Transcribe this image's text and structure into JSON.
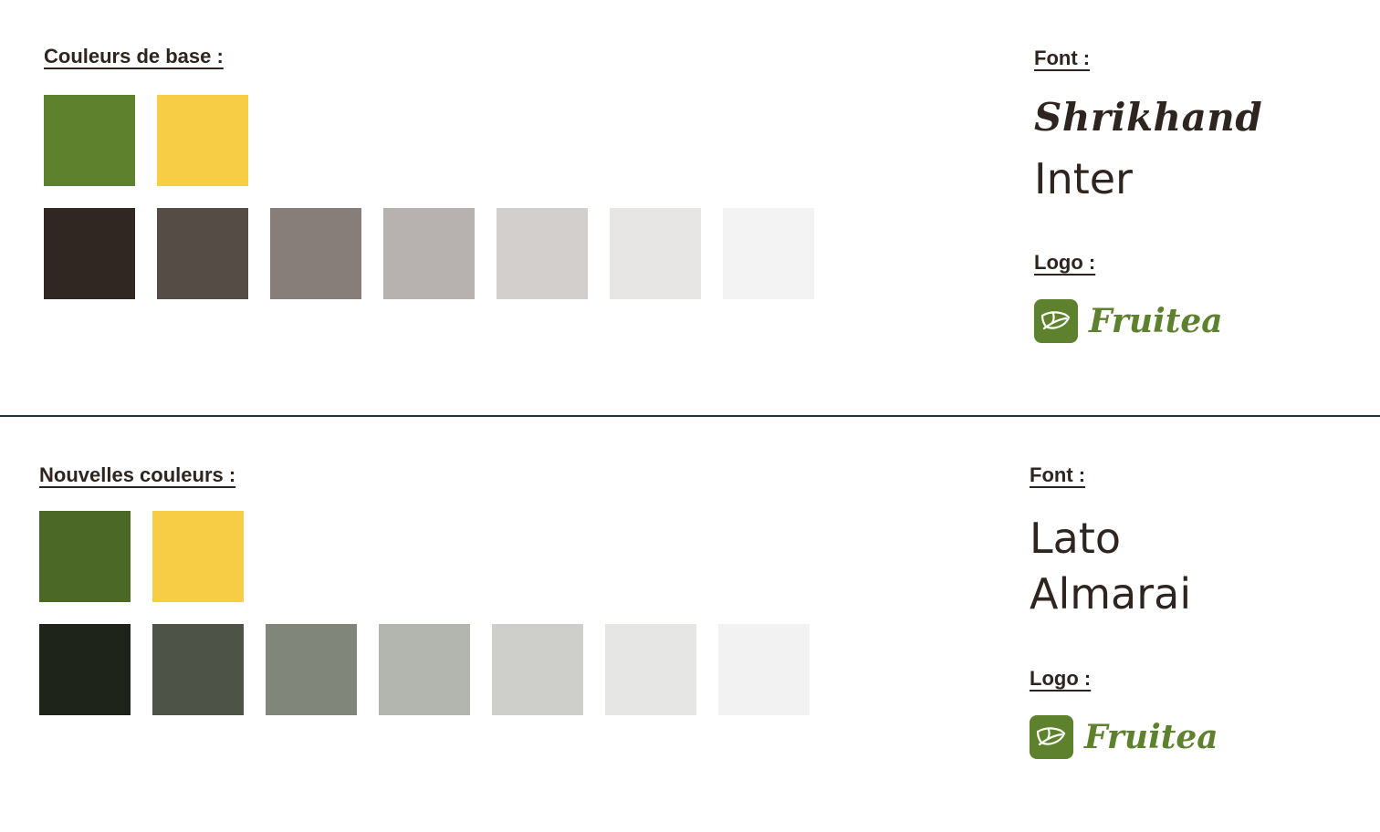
{
  "colors": {
    "text": "#2f2520",
    "divider": "#1f3038"
  },
  "base": {
    "colors_heading": "Couleurs de base :",
    "primary_swatches": [
      {
        "color": "#5e812e",
        "role": "green"
      },
      {
        "color": "#f6cd45",
        "role": "yellow"
      }
    ],
    "neutral_swatches": [
      {
        "color": "#312722"
      },
      {
        "color": "#564c46"
      },
      {
        "color": "#877e79"
      },
      {
        "color": "#b7b2af"
      },
      {
        "color": "#d3cfcd"
      },
      {
        "color": "#e8e6e5"
      },
      {
        "color": "#f4f3f3"
      }
    ],
    "font_heading": "Font :",
    "fonts": [
      "Shrikhand",
      "Inter"
    ],
    "logo_heading": "Logo :",
    "logo": {
      "icon": "leaf-icon",
      "text": "Fruitea",
      "badge_color": "#5e812e",
      "text_color": "#5e812e"
    }
  },
  "new": {
    "colors_heading": "Nouvelles couleurs :",
    "primary_swatches": [
      {
        "color": "#4c6827",
        "role": "green"
      },
      {
        "color": "#f6cd45",
        "role": "yellow"
      }
    ],
    "neutral_swatches": [
      {
        "color": "#1e241a"
      },
      {
        "color": "#4d5347"
      },
      {
        "color": "#808679"
      },
      {
        "color": "#b3b6ae"
      },
      {
        "color": "#cecfca"
      },
      {
        "color": "#e6e6e5"
      },
      {
        "color": "#f2f2f2"
      }
    ],
    "font_heading": "Font :",
    "fonts": [
      "Lato",
      "Almarai"
    ],
    "logo_heading": "Logo :",
    "logo": {
      "icon": "leaf-icon",
      "text": "Fruitea",
      "badge_color": "#5e812e",
      "text_color": "#5e812e"
    }
  }
}
